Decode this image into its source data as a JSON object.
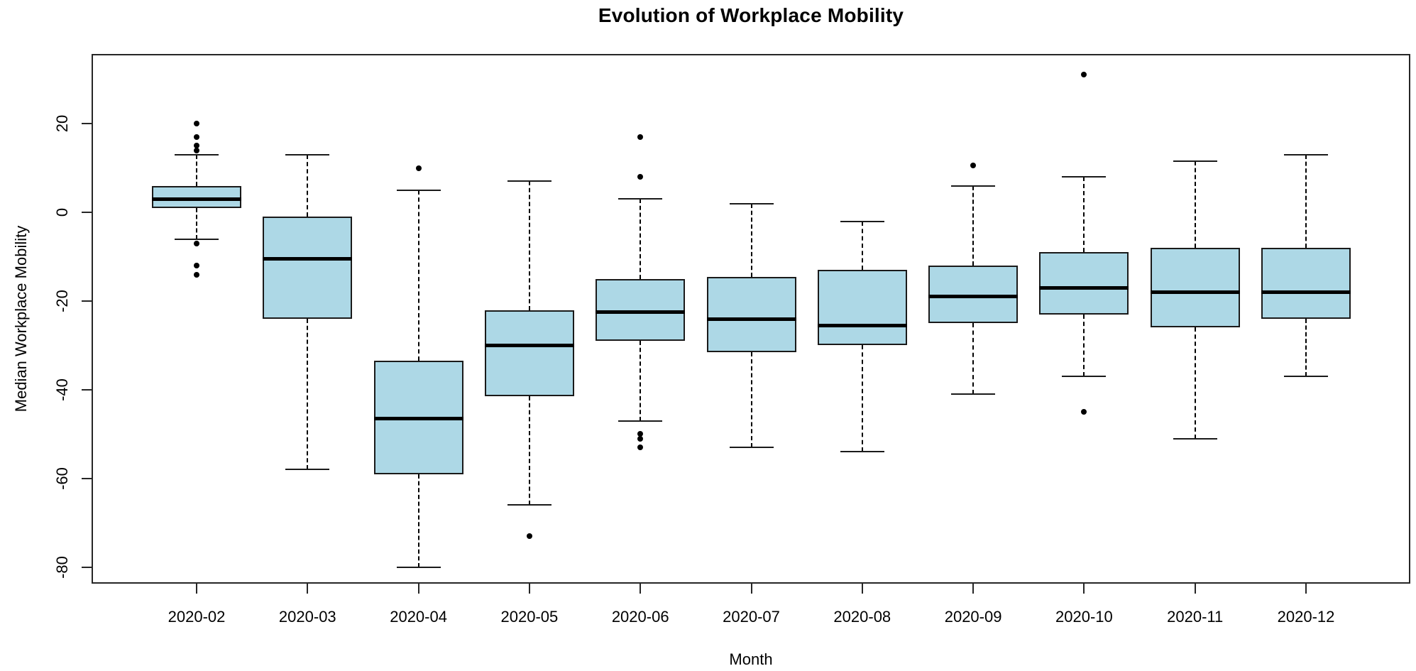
{
  "title": "Evolution of Workplace Mobility",
  "x_axis": {
    "label": "Month"
  },
  "y_axis": {
    "label": "Median Workplace Mobility",
    "ticks": [
      20,
      0,
      -20,
      -40,
      -60,
      -80
    ]
  },
  "colors": {
    "box_fill": "#ADD8E6",
    "box_border": "#1a1a1a",
    "median": "#000000",
    "whisker": "#000000",
    "axis": "#262626",
    "background": "#ffffff"
  },
  "chart_data": {
    "type": "boxplot",
    "title": "Evolution of Workplace Mobility",
    "xlabel": "Month",
    "ylabel": "Median Workplace Mobility",
    "ylim": [
      -83.7,
      35.7
    ],
    "y_tick_values": [
      20,
      0,
      -20,
      -40,
      -60,
      -80
    ],
    "grid": false,
    "categories": [
      "2020-02",
      "2020-03",
      "2020-04",
      "2020-05",
      "2020-06",
      "2020-07",
      "2020-08",
      "2020-09",
      "2020-10",
      "2020-11",
      "2020-12"
    ],
    "series": [
      {
        "month": "2020-02",
        "whisker_low": -6,
        "q1": 1,
        "median": 3,
        "q3": 6,
        "whisker_high": 13,
        "outliers": [
          20,
          17,
          15,
          14,
          -7,
          -12,
          -14
        ]
      },
      {
        "month": "2020-03",
        "whisker_low": -58,
        "q1": -24,
        "median": -10.5,
        "q3": -1,
        "whisker_high": 13,
        "outliers": []
      },
      {
        "month": "2020-04",
        "whisker_low": -80,
        "q1": -59,
        "median": -46.5,
        "q3": -33.5,
        "whisker_high": 5,
        "outliers": [
          10
        ]
      },
      {
        "month": "2020-05",
        "whisker_low": -66,
        "q1": -41.5,
        "median": -30,
        "q3": -22,
        "whisker_high": 7,
        "outliers": [
          -73
        ]
      },
      {
        "month": "2020-06",
        "whisker_low": -47,
        "q1": -29,
        "median": -22.5,
        "q3": -15,
        "whisker_high": 3,
        "outliers": [
          17,
          8,
          -50,
          -51,
          -53
        ]
      },
      {
        "month": "2020-07",
        "whisker_low": -53,
        "q1": -31.5,
        "median": -24,
        "q3": -14.5,
        "whisker_high": 2,
        "outliers": []
      },
      {
        "month": "2020-08",
        "whisker_low": -54,
        "q1": -30,
        "median": -25.5,
        "q3": -13,
        "whisker_high": -2,
        "outliers": []
      },
      {
        "month": "2020-09",
        "whisker_low": -41,
        "q1": -25,
        "median": -19,
        "q3": -12,
        "whisker_high": 6,
        "outliers": [
          10.5
        ]
      },
      {
        "month": "2020-10",
        "whisker_low": -37,
        "q1": -23,
        "median": -17,
        "q3": -9,
        "whisker_high": 8,
        "outliers": [
          31,
          -45
        ]
      },
      {
        "month": "2020-11",
        "whisker_low": -51,
        "q1": -26,
        "median": -18,
        "q3": -8,
        "whisker_high": 11.5,
        "outliers": []
      },
      {
        "month": "2020-12",
        "whisker_low": -37,
        "q1": -24,
        "median": -18,
        "q3": -8,
        "whisker_high": 13,
        "outliers": []
      }
    ]
  }
}
